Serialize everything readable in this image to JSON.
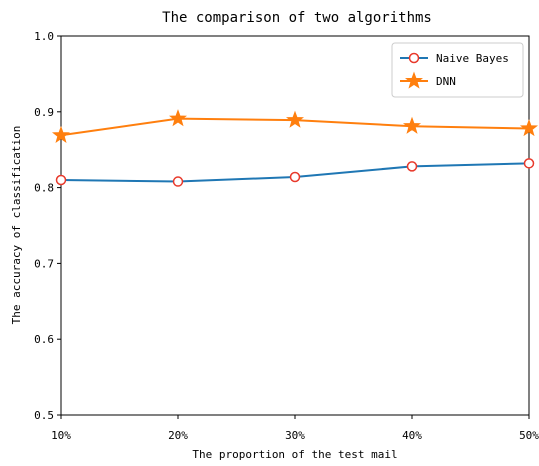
{
  "chart_data": {
    "type": "line",
    "title": "The comparison of two algorithms",
    "xlabel": "The proportion of the test mail",
    "ylabel": "The accuracy of classification",
    "categories": [
      "10%",
      "20%",
      "30%",
      "40%",
      "50%"
    ],
    "ylim": [
      0.5,
      1.0
    ],
    "yticks": [
      "0.5",
      "0.6",
      "0.7",
      "0.8",
      "0.9",
      "1.0"
    ],
    "grid": false,
    "legend_position": "top-right",
    "series": [
      {
        "name": "Naive Bayes",
        "color": "#1f77b4",
        "marker": "circle",
        "values": [
          0.81,
          0.808,
          0.814,
          0.828,
          0.832
        ]
      },
      {
        "name": "DNN",
        "color": "#ff7f0e",
        "marker": "star",
        "values": [
          0.869,
          0.891,
          0.889,
          0.881,
          0.878
        ]
      }
    ]
  }
}
